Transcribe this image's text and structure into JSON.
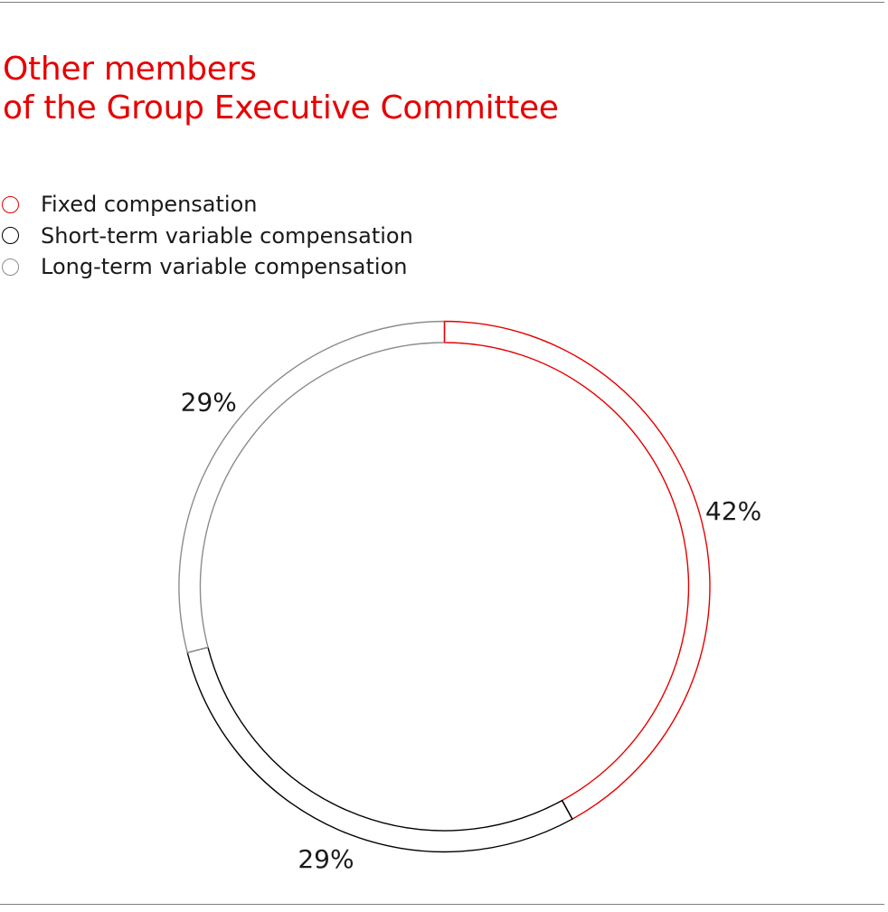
{
  "title": {
    "line1": "Other members",
    "line2": "of the Group Executive Committee"
  },
  "colors": {
    "title": "#e60000",
    "fixed": "#e60000",
    "short_term": "#000000",
    "long_term": "#8c8c8c",
    "rule": "#7f7f7f"
  },
  "chart_data": {
    "type": "pie",
    "style": "donut-ring",
    "categories": [
      "Fixed compensation",
      "Short-term variable compensation",
      "Long-term variable compensation"
    ],
    "values": [
      42,
      29,
      29
    ],
    "labels": [
      "42%",
      "29%",
      "29%"
    ],
    "colors": [
      "#e60000",
      "#000000",
      "#8c8c8c"
    ],
    "start_angle_deg": 0,
    "direction": "clockwise",
    "legend_position": "top-left"
  }
}
